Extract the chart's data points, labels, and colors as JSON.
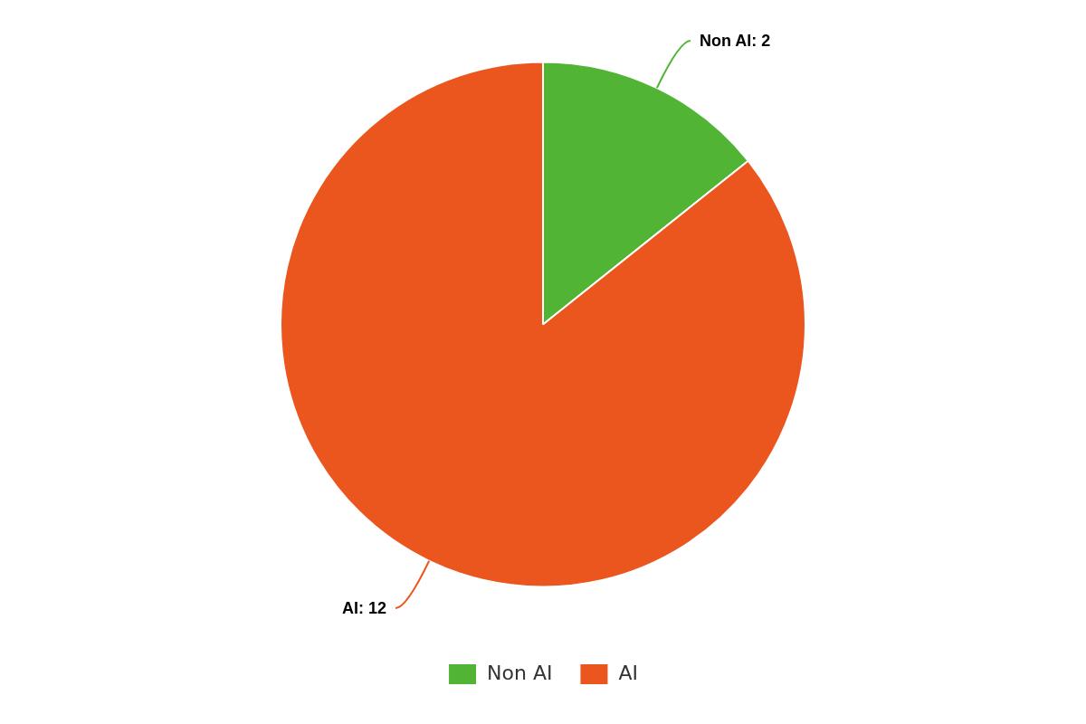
{
  "chart_data": {
    "type": "pie",
    "categories": [
      "Non AI",
      "AI"
    ],
    "values": [
      2,
      12
    ],
    "colors": [
      "#52b435",
      "#eb561e"
    ],
    "value_labels": [
      "Non AI: 2",
      "AI: 12"
    ],
    "legend": "bottom"
  }
}
